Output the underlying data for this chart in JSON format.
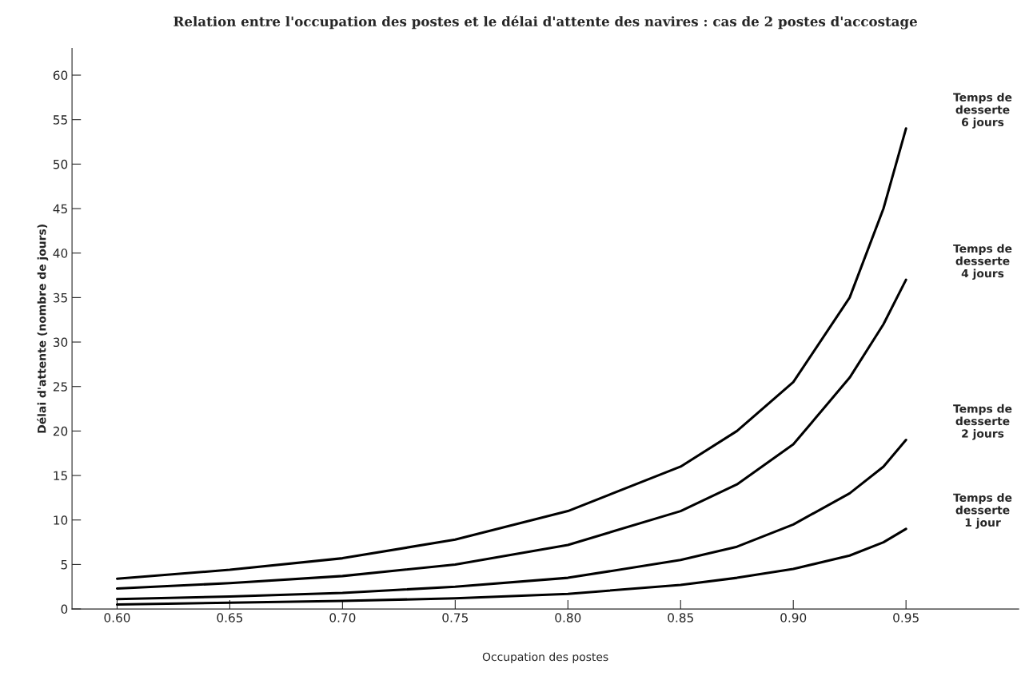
{
  "chart_data": {
    "type": "line",
    "title": "Relation entre l'occupation des postes et le délai d'attente des navires : cas de 2 postes d'accostage",
    "xlabel": "Occupation des postes",
    "ylabel": "Délai d'attente (nombre de jours)",
    "x": [
      0.6,
      0.65,
      0.7,
      0.75,
      0.8,
      0.85,
      0.875,
      0.9,
      0.925,
      0.94,
      0.95
    ],
    "series": [
      {
        "name": "Temps de\ndesserte\n6 jours",
        "color": "#000000",
        "values": [
          3.4,
          4.4,
          5.7,
          7.8,
          11,
          16,
          20,
          25.5,
          35,
          45,
          54
        ]
      },
      {
        "name": "Temps de\ndesserte\n4 jours",
        "color": "#000000",
        "values": [
          2.3,
          2.9,
          3.7,
          5,
          7.2,
          11,
          14,
          18.5,
          26,
          32,
          37
        ]
      },
      {
        "name": "Temps de\ndesserte\n2 jours",
        "color": "#000000",
        "values": [
          1.1,
          1.4,
          1.8,
          2.5,
          3.5,
          5.5,
          7,
          9.5,
          13,
          16,
          19
        ]
      },
      {
        "name": "Temps de\ndesserte\n1 jour",
        "color": "#000000",
        "values": [
          0.5,
          0.7,
          0.9,
          1.2,
          1.7,
          2.7,
          3.5,
          4.5,
          6,
          7.5,
          9
        ]
      }
    ],
    "xlim": [
      0.58,
      1.0
    ],
    "ylim": [
      0,
      63
    ],
    "xticks": [
      {
        "value": 0.6,
        "label": "0.60"
      },
      0.65,
      {
        "value": 0.7,
        "label": "0.70"
      },
      0.75,
      {
        "value": 0.8,
        "label": "0.80"
      },
      0.85,
      {
        "value": 0.9,
        "label": "0.90"
      },
      0.95
    ],
    "yticks": [
      0,
      5,
      10,
      15,
      20,
      25,
      30,
      35,
      40,
      45,
      50,
      55,
      60
    ],
    "grid": false,
    "legend": false,
    "marker": "none",
    "line_style": "solid"
  }
}
